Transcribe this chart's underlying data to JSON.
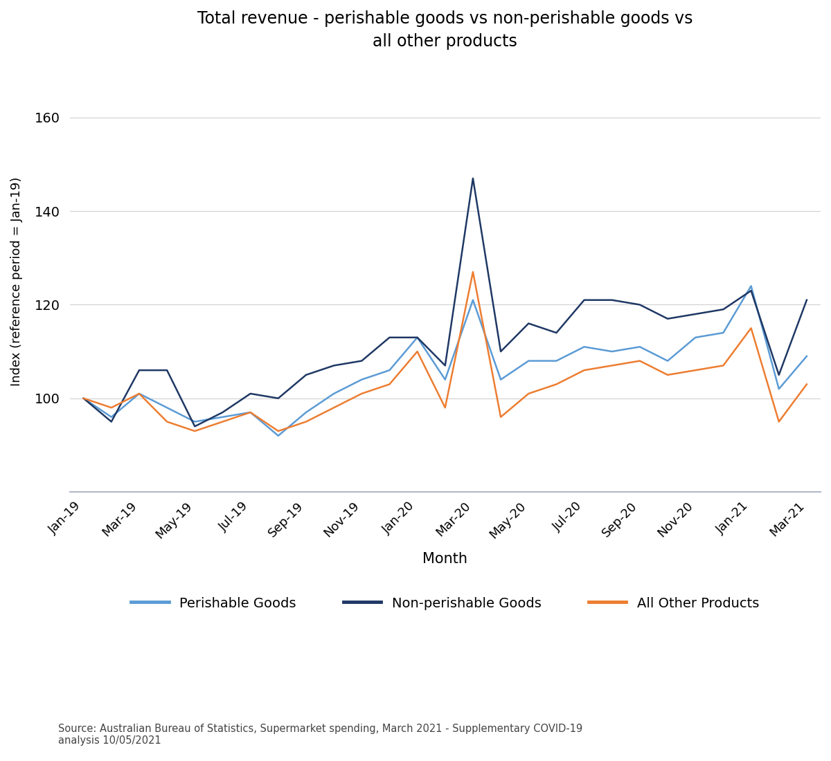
{
  "title": "Total revenue - perishable goods vs non-perishable goods vs\nall other products",
  "xlabel": "Month",
  "ylabel": "Index (reference period = Jan-19)",
  "background_color": "#ffffff",
  "grid_color": "#d0d0d0",
  "axis_color": "#b0b8c8",
  "source_text": "Source: Australian Bureau of Statistics, Supermarket spending, March 2021 - Supplementary COVID-19\nanalysis 10/05/2021",
  "x_tick_labels": [
    "Jan-19",
    "Mar-19",
    "May-19",
    "Jul-19",
    "Sep-19",
    "Nov-19",
    "Jan-20",
    "Mar-20",
    "May-20",
    "Jul-20",
    "Sep-20",
    "Nov-20",
    "Jan-21",
    "Mar-21"
  ],
  "ylim": [
    80,
    170
  ],
  "yticks": [
    100,
    120,
    140,
    160
  ],
  "perishable_data": [
    100,
    96,
    101,
    98,
    95,
    96,
    97,
    92,
    97,
    101,
    104,
    106,
    113,
    104,
    121,
    104,
    108,
    108,
    111,
    110,
    111,
    108,
    113,
    114,
    124,
    102,
    109
  ],
  "non_perishable_data": [
    100,
    95,
    106,
    106,
    94,
    97,
    101,
    100,
    105,
    107,
    108,
    113,
    113,
    107,
    147,
    110,
    116,
    114,
    121,
    121,
    120,
    117,
    118,
    119,
    123,
    105,
    121
  ],
  "all_other_data": [
    100,
    98,
    101,
    95,
    93,
    95,
    97,
    93,
    95,
    98,
    101,
    103,
    110,
    98,
    127,
    96,
    101,
    103,
    106,
    107,
    108,
    105,
    106,
    107,
    115,
    95,
    103
  ],
  "perishable_color": "#5B9BD5",
  "non_perishable_color": "#1F3864",
  "all_other_color": "#ED7D31",
  "line_width": 1.8,
  "legend_labels": [
    "Perishable Goods",
    "Non-perishable Goods",
    "All Other Products"
  ]
}
